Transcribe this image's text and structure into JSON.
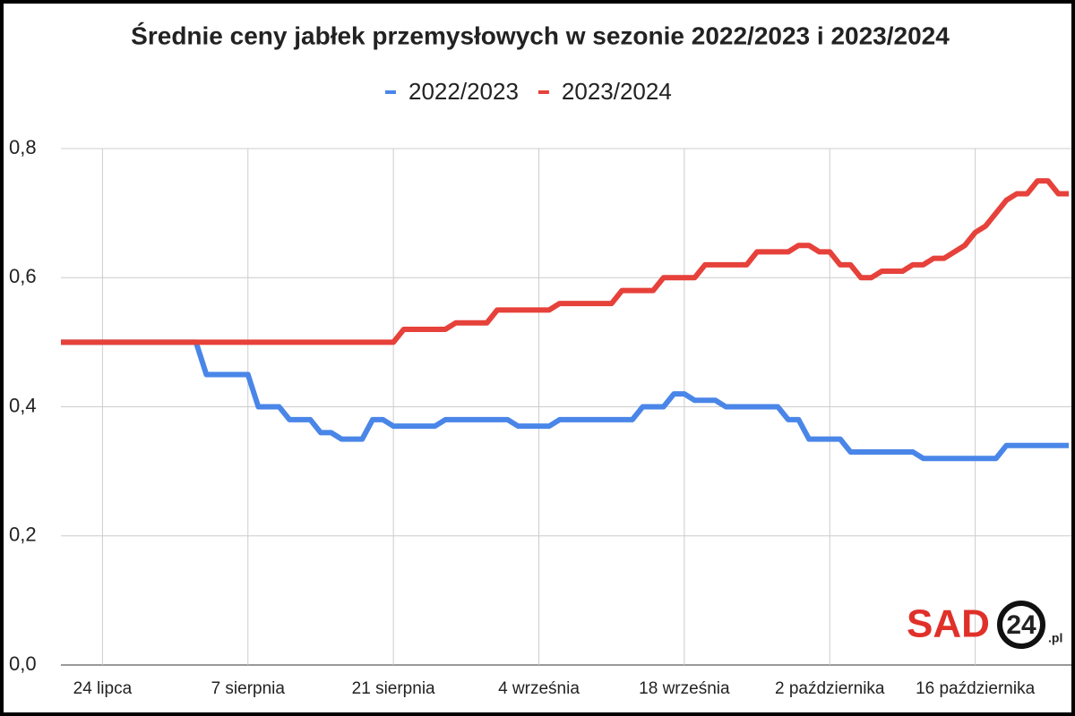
{
  "chart_data": {
    "type": "line",
    "title": "Średnie ceny jabłek przemysłowych w sezonie 2022/2023 i 2023/2024",
    "categories": [
      null,
      null,
      null,
      null,
      "24 lipca",
      null,
      null,
      null,
      null,
      null,
      null,
      null,
      null,
      null,
      null,
      null,
      null,
      null,
      "7 sierpnia",
      null,
      null,
      null,
      null,
      null,
      null,
      null,
      null,
      null,
      null,
      null,
      null,
      null,
      "21 sierpnia",
      null,
      null,
      null,
      null,
      null,
      null,
      null,
      null,
      null,
      null,
      null,
      null,
      null,
      "4 września",
      null,
      null,
      null,
      null,
      null,
      null,
      null,
      null,
      null,
      null,
      null,
      null,
      null,
      "18 września",
      null,
      null,
      null,
      null,
      null,
      null,
      null,
      null,
      null,
      null,
      null,
      null,
      null,
      "2 października",
      null,
      null,
      null,
      null,
      null,
      null,
      null,
      null,
      null,
      null,
      null,
      null,
      null,
      "16 października",
      null,
      null,
      null,
      null,
      null,
      null,
      null,
      null,
      null
    ],
    "series": [
      {
        "name": "2022/2023",
        "color": "#4a86e8",
        "values": [
          0.5,
          0.5,
          0.5,
          0.5,
          0.5,
          0.5,
          0.5,
          0.5,
          0.5,
          0.5,
          0.5,
          0.5,
          0.5,
          0.5,
          0.45,
          0.45,
          0.45,
          0.45,
          0.45,
          0.4,
          0.4,
          0.4,
          0.38,
          0.38,
          0.38,
          0.36,
          0.36,
          0.35,
          0.35,
          0.35,
          0.38,
          0.38,
          0.37,
          0.37,
          0.37,
          0.37,
          0.37,
          0.38,
          0.38,
          0.38,
          0.38,
          0.38,
          0.38,
          0.38,
          0.37,
          0.37,
          0.37,
          0.37,
          0.38,
          0.38,
          0.38,
          0.38,
          0.38,
          0.38,
          0.38,
          0.38,
          0.4,
          0.4,
          0.4,
          0.42,
          0.42,
          0.41,
          0.41,
          0.41,
          0.4,
          0.4,
          0.4,
          0.4,
          0.4,
          0.4,
          0.38,
          0.38,
          0.35,
          0.35,
          0.35,
          0.35,
          0.33,
          0.33,
          0.33,
          0.33,
          0.33,
          0.33,
          0.33,
          0.32,
          0.32,
          0.32,
          0.32,
          0.32,
          0.32,
          0.32,
          0.32,
          0.34,
          0.34,
          0.34,
          0.34,
          0.34,
          0.34,
          0.34
        ]
      },
      {
        "name": "2023/2024",
        "color": "#e6413a",
        "values": [
          0.5,
          0.5,
          0.5,
          0.5,
          0.5,
          0.5,
          0.5,
          0.5,
          0.5,
          0.5,
          0.5,
          0.5,
          0.5,
          0.5,
          0.5,
          0.5,
          0.5,
          0.5,
          0.5,
          0.5,
          0.5,
          0.5,
          0.5,
          0.5,
          0.5,
          0.5,
          0.5,
          0.5,
          0.5,
          0.5,
          0.5,
          0.5,
          0.5,
          0.52,
          0.52,
          0.52,
          0.52,
          0.52,
          0.53,
          0.53,
          0.53,
          0.53,
          0.55,
          0.55,
          0.55,
          0.55,
          0.55,
          0.55,
          0.56,
          0.56,
          0.56,
          0.56,
          0.56,
          0.56,
          0.58,
          0.58,
          0.58,
          0.58,
          0.6,
          0.6,
          0.6,
          0.6,
          0.62,
          0.62,
          0.62,
          0.62,
          0.62,
          0.64,
          0.64,
          0.64,
          0.64,
          0.65,
          0.65,
          0.64,
          0.64,
          0.62,
          0.62,
          0.6,
          0.6,
          0.61,
          0.61,
          0.61,
          0.62,
          0.62,
          0.63,
          0.63,
          0.64,
          0.65,
          0.67,
          0.68,
          0.7,
          0.72,
          0.73,
          0.73,
          0.75,
          0.75,
          0.73,
          0.73
        ]
      }
    ],
    "ylim": [
      0,
      0.8
    ],
    "yticks": [
      {
        "value": 0,
        "label": "0,0"
      },
      {
        "value": 0.2,
        "label": "0,2"
      },
      {
        "value": 0.4,
        "label": "0,4"
      },
      {
        "value": 0.6,
        "label": "0,6"
      },
      {
        "value": 0.8,
        "label": "0,8"
      }
    ],
    "grid": true
  },
  "logo": {
    "brand": "SAD",
    "number": "24",
    "domain": ".pl"
  }
}
